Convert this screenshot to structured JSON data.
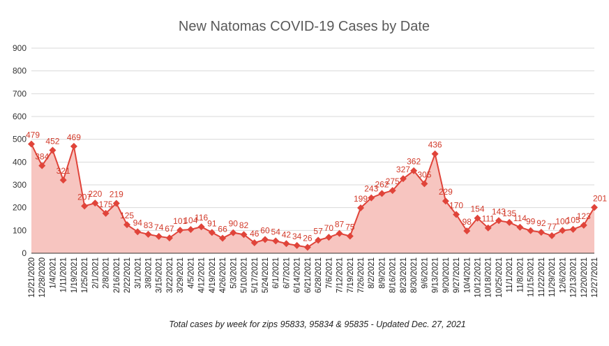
{
  "chart_data": {
    "type": "area",
    "title": "New Natomas COVID-19 Cases by Date",
    "subtitle": "Total cases by week for zips 95833, 95834 & 95835 - Updated Dec. 27, 2021",
    "xlabel": "",
    "ylabel": "",
    "ylim": [
      0,
      900
    ],
    "yticks": [
      0,
      100,
      200,
      300,
      400,
      500,
      600,
      700,
      800,
      900
    ],
    "grid": true,
    "legend": "none",
    "line_color": "#e0443a",
    "fill_color": "#f7c5c0",
    "categories": [
      "12/21/2020",
      "12/28/2020",
      "1/4/2021",
      "1/11/2021",
      "1/19/2021",
      "1/25/2021",
      "2/1/2021",
      "2/8/2021",
      "2/16/2021",
      "2/22/2021",
      "3/1/2021",
      "3/8/2021",
      "3/15/2021",
      "3/22/2021",
      "3/29/2021",
      "4/5/2021",
      "4/12/2021",
      "4/19/2021",
      "4/26/2021",
      "5/3/2021",
      "5/10/2021",
      "5/17/2021",
      "5/24/2021",
      "6/1/2021",
      "6/7/2021",
      "6/14/2021",
      "6/21/2021",
      "6/28/2021",
      "7/6/2021",
      "7/12/2021",
      "7/19/2021",
      "7/26/2021",
      "8/2/2021",
      "8/9/2021",
      "8/16/2021",
      "8/23/2021",
      "8/30/2021",
      "9/6/2021",
      "9/13/2021",
      "9/20/2021",
      "9/27/2021",
      "10/4/2021",
      "10/12/2021",
      "10/18/2021",
      "10/25/2021",
      "11/1/2021",
      "11/8/2021",
      "11/15/2021",
      "11/22/2021",
      "11/29/2021",
      "12/6/2021",
      "12/13/2021",
      "12/20/2021",
      "12/27/2021"
    ],
    "series": [
      {
        "values": [
          479,
          384,
          452,
          321,
          469,
          207,
          220,
          175,
          219,
          125,
          94,
          83,
          74,
          67,
          101,
          104,
          116,
          91,
          66,
          90,
          82,
          46,
          60,
          54,
          42,
          34,
          26,
          57,
          70,
          87,
          75,
          199,
          243,
          262,
          275,
          327,
          362,
          305,
          436,
          229,
          170,
          98,
          154,
          111,
          143,
          135,
          114,
          99,
          92,
          77,
          100,
          105,
          123,
          201
        ],
        "labels": [
          "479",
          "384",
          "452",
          "321",
          "469",
          "207",
          "220",
          "175",
          "219",
          "125",
          "94",
          "83",
          "74",
          "67",
          "101",
          "104",
          "116",
          "91",
          "66",
          "90",
          "82",
          "46",
          "60",
          "54",
          "42",
          "34",
          "26",
          "57",
          "70",
          "87",
          "75",
          "199",
          "243",
          "262",
          "275",
          "327",
          "362",
          "305",
          "436",
          "229",
          "170",
          "98",
          "154",
          "111",
          "143",
          "135",
          "114",
          "99",
          "92",
          "77",
          "100",
          "105",
          "123",
          "201"
        ]
      }
    ]
  }
}
